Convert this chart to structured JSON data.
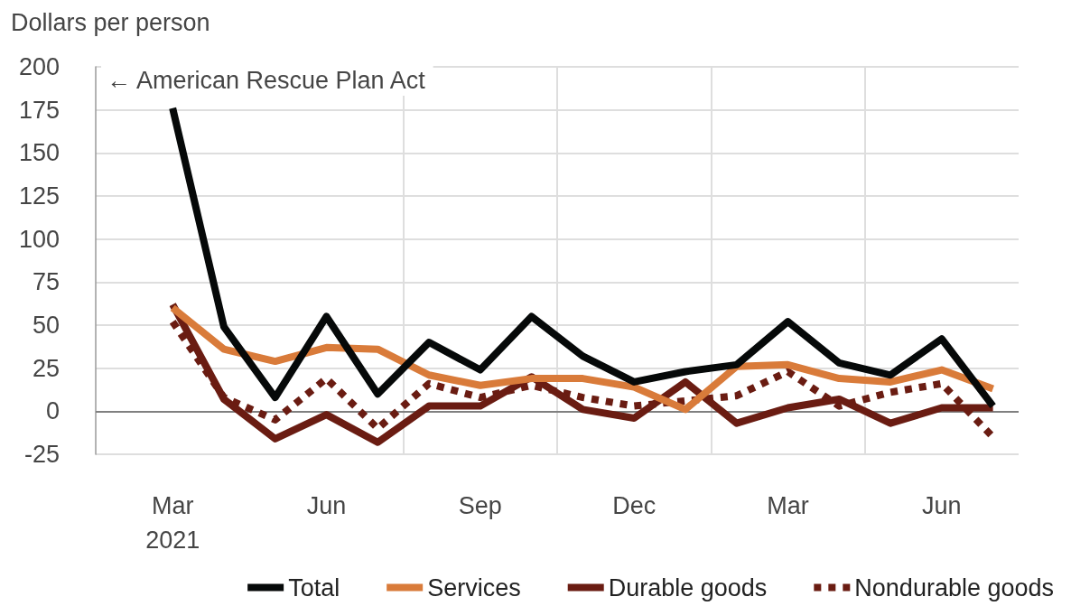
{
  "chart_data": {
    "type": "line",
    "ylabel": "Dollars per person",
    "annotations": [
      "← American Rescue Plan Act"
    ],
    "categories": [
      null,
      "Mar\n2021",
      null,
      null,
      "Jun",
      null,
      null,
      "Sep",
      null,
      null,
      "Dec",
      null,
      null,
      "Mar",
      null,
      null,
      "Jun",
      null
    ],
    "series": [
      {
        "name": "Total",
        "color": "#060909",
        "values": [
          null,
          176,
          49,
          8,
          55,
          10,
          40,
          24,
          55,
          32,
          17,
          23,
          27,
          52,
          28,
          21,
          42,
          3
        ]
      },
      {
        "name": "Services",
        "color": "#d97b3a",
        "values": [
          null,
          60,
          36,
          29,
          37,
          36,
          21,
          15,
          19,
          19,
          14,
          1,
          26,
          27,
          19,
          17,
          24,
          13
        ]
      },
      {
        "name": "Durable goods",
        "color": "#6a1c12",
        "values": [
          null,
          62,
          7,
          -16,
          -2,
          -18,
          3,
          3,
          20,
          1,
          -4,
          17,
          -7,
          2,
          7,
          -7,
          2,
          2
        ]
      },
      {
        "name": "Nondurable goods",
        "color": "#6a1c12",
        "line_style": "dotted",
        "values": [
          null,
          52,
          8,
          -5,
          19,
          -10,
          16,
          8,
          15,
          8,
          3,
          6,
          9,
          23,
          3,
          11,
          16,
          -15
        ]
      }
    ],
    "ylim": [
      -25,
      200
    ],
    "yticks": [
      -25,
      0,
      25,
      50,
      75,
      100,
      125,
      150,
      175,
      200
    ],
    "ref_lines": [
      {
        "axis": "y",
        "value": 0,
        "color": "#808080"
      }
    ],
    "grid": true,
    "legend": "bottom"
  }
}
